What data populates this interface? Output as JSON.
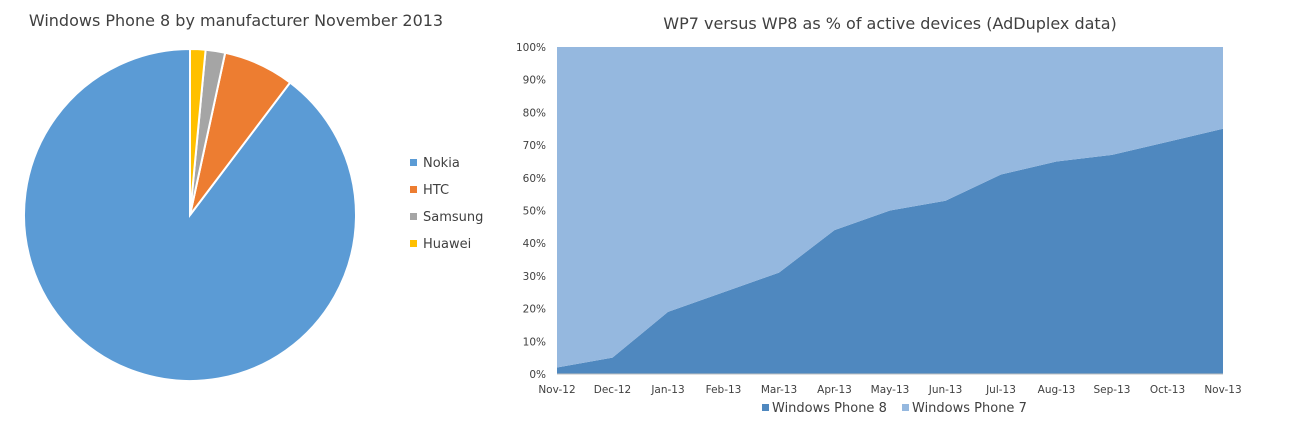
{
  "chart_data": [
    {
      "type": "pie",
      "title": "Windows Phone 8 by manufacturer November 2013",
      "slices": [
        {
          "label": "Nokia",
          "value": 89.7,
          "color": "#5B9BD5"
        },
        {
          "label": "HTC",
          "value": 6.9,
          "color": "#ED7D31"
        },
        {
          "label": "Samsung",
          "value": 1.9,
          "color": "#A5A5A5"
        },
        {
          "label": "Huawei",
          "value": 1.5,
          "color": "#FFC000"
        }
      ],
      "legend_position": "right"
    },
    {
      "type": "area",
      "stacked_percent": true,
      "title": "WP7 versus WP8 as % of active devices (AdDuplex data)",
      "categories": [
        "Nov-12",
        "Dec-12",
        "Jan-13",
        "Feb-13",
        "Mar-13",
        "Apr-13",
        "May-13",
        "Jun-13",
        "Jul-13",
        "Aug-13",
        "Sep-13",
        "Oct-13",
        "Nov-13"
      ],
      "series": [
        {
          "name": "Windows Phone 8",
          "color": "#4F88BF",
          "values": [
            2,
            5,
            19,
            25,
            31,
            44,
            50,
            53,
            61,
            65,
            67,
            71,
            75
          ]
        },
        {
          "name": "Windows Phone 7",
          "color": "#95B8DF",
          "values": [
            98,
            95,
            81,
            75,
            69,
            56,
            50,
            47,
            39,
            35,
            33,
            29,
            25
          ]
        }
      ],
      "y_ticks": [
        "0%",
        "10%",
        "20%",
        "30%",
        "40%",
        "50%",
        "60%",
        "70%",
        "80%",
        "90%",
        "100%"
      ],
      "ylim": [
        0,
        100
      ],
      "legend_position": "bottom"
    }
  ]
}
